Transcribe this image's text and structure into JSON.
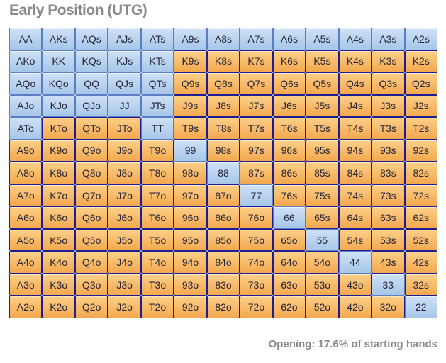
{
  "title": "Early Position (UTG)",
  "footer": "Opening: 17.6% of starting hands",
  "colors": {
    "selected_top": "#cfe1f6",
    "selected_bottom": "#a6c6e9",
    "selected_border": "#5a7ec1",
    "unselected_top": "#fcd089",
    "unselected_bottom": "#f4a84e",
    "unselected_border": "#1c1c94",
    "cell_text": "#26263a",
    "heading_text": "#8a8a8a"
  },
  "chart_data": {
    "type": "heatmap",
    "title": "Early Position (UTG)",
    "annotation": "Opening: 17.6% of starting hands",
    "opening_percent": 17.6,
    "legend": {
      "selected_meaning": "hand in opening range (blue)",
      "unselected_meaning": "hand not in opening range (orange)"
    },
    "rows": [
      [
        "AA",
        "AKs",
        "AQs",
        "AJs",
        "ATs",
        "A9s",
        "A8s",
        "A7s",
        "A6s",
        "A5s",
        "A4s",
        "A3s",
        "A2s"
      ],
      [
        "AKo",
        "KK",
        "KQs",
        "KJs",
        "KTs",
        "K9s",
        "K8s",
        "K7s",
        "K6s",
        "K5s",
        "K4s",
        "K3s",
        "K2s"
      ],
      [
        "AQo",
        "KQo",
        "QQ",
        "QJs",
        "QTs",
        "Q9s",
        "Q8s",
        "Q7s",
        "Q6s",
        "Q5s",
        "Q4s",
        "Q3s",
        "Q2s"
      ],
      [
        "AJo",
        "KJo",
        "QJo",
        "JJ",
        "JTs",
        "J9s",
        "J8s",
        "J7s",
        "J6s",
        "J5s",
        "J4s",
        "J3s",
        "J2s"
      ],
      [
        "ATo",
        "KTo",
        "QTo",
        "JTo",
        "TT",
        "T9s",
        "T8s",
        "T7s",
        "T6s",
        "T5s",
        "T4s",
        "T3s",
        "T2s"
      ],
      [
        "A9o",
        "K9o",
        "Q9o",
        "J9o",
        "T9o",
        "99",
        "98s",
        "97s",
        "96s",
        "95s",
        "94s",
        "93s",
        "92s"
      ],
      [
        "A8o",
        "K8o",
        "Q8o",
        "J8o",
        "T8o",
        "98o",
        "88",
        "87s",
        "86s",
        "85s",
        "84s",
        "83s",
        "82s"
      ],
      [
        "A7o",
        "K7o",
        "Q7o",
        "J7o",
        "T7o",
        "97o",
        "87o",
        "77",
        "76s",
        "75s",
        "74s",
        "73s",
        "72s"
      ],
      [
        "A6o",
        "K6o",
        "Q6o",
        "J6o",
        "T6o",
        "96o",
        "86o",
        "76o",
        "66",
        "65s",
        "64s",
        "63s",
        "62s"
      ],
      [
        "A5o",
        "K5o",
        "Q5o",
        "J5o",
        "T5o",
        "95o",
        "85o",
        "75o",
        "65o",
        "55",
        "54s",
        "53s",
        "52s"
      ],
      [
        "A4o",
        "K4o",
        "Q4o",
        "J4o",
        "T4o",
        "94o",
        "84o",
        "74o",
        "64o",
        "54o",
        "44",
        "43s",
        "42s"
      ],
      [
        "A3o",
        "K3o",
        "Q3o",
        "J3o",
        "T3o",
        "93o",
        "83o",
        "73o",
        "63o",
        "53o",
        "43o",
        "33",
        "32s"
      ],
      [
        "A2o",
        "K2o",
        "Q2o",
        "J2o",
        "T2o",
        "92o",
        "82o",
        "72o",
        "62o",
        "52o",
        "42o",
        "32o",
        "22"
      ]
    ],
    "selected_hands": [
      "AA",
      "AKs",
      "AQs",
      "AJs",
      "ATs",
      "A9s",
      "A8s",
      "A7s",
      "A6s",
      "A5s",
      "A4s",
      "A3s",
      "A2s",
      "AKo",
      "KK",
      "KQs",
      "KJs",
      "KTs",
      "AQo",
      "KQo",
      "QQ",
      "QJs",
      "QTs",
      "AJo",
      "KJo",
      "QJo",
      "JJ",
      "JTs",
      "ATo",
      "TT",
      "99",
      "88",
      "77",
      "66",
      "55",
      "44",
      "33",
      "22"
    ]
  }
}
